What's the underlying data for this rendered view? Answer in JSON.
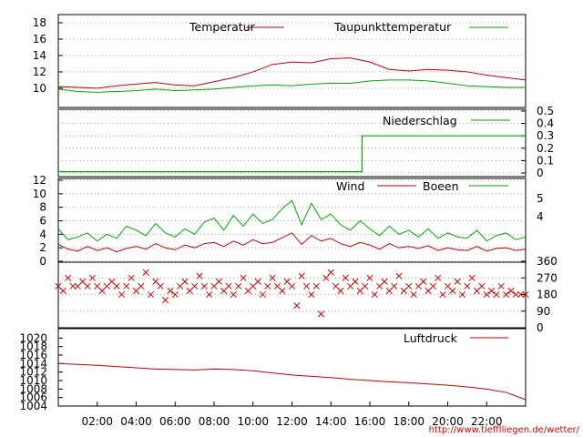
{
  "footer_url": "http://www.tiefflliegen.de/wetter/",
  "x_axis": {
    "hours": [
      "02:00",
      "04:00",
      "06:00",
      "08:00",
      "10:00",
      "12:00",
      "14:00",
      "16:00",
      "18:00",
      "20:00",
      "22:00"
    ]
  },
  "chart_data": [
    {
      "type": "line",
      "id": "temperature",
      "title": "",
      "xlabel": "",
      "ylabel": "",
      "ylim": [
        8,
        19
      ],
      "yticks": [
        "10",
        "12",
        "14",
        "16",
        "18"
      ],
      "grid": true,
      "legend_position": "top-right",
      "x_hours": [
        0,
        1,
        2,
        3,
        4,
        5,
        6,
        7,
        8,
        9,
        10,
        11,
        12,
        13,
        14,
        15,
        16,
        17,
        18,
        19,
        20,
        21,
        22,
        23,
        24
      ],
      "series": [
        {
          "name": "Temperatur",
          "color": "#cc0000",
          "values": [
            10.2,
            10.1,
            10.0,
            10.3,
            10.5,
            10.7,
            10.4,
            10.3,
            10.8,
            11.3,
            12.0,
            12.9,
            13.2,
            13.1,
            13.6,
            13.7,
            13.2,
            12.3,
            12.1,
            12.3,
            12.2,
            12.0,
            11.6,
            11.3,
            11.0
          ]
        },
        {
          "name": "Taupunkttemperatur",
          "color": "#00aa00",
          "values": [
            9.9,
            9.6,
            9.5,
            9.6,
            9.7,
            9.9,
            9.7,
            9.8,
            9.9,
            10.1,
            10.3,
            10.4,
            10.3,
            10.5,
            10.6,
            10.6,
            10.9,
            11.0,
            11.0,
            10.9,
            10.6,
            10.3,
            10.2,
            10.1,
            10.1
          ]
        }
      ]
    },
    {
      "type": "line",
      "id": "precipitation",
      "title": "",
      "xlabel": "",
      "ylabel": "",
      "ylim": [
        0,
        0.5
      ],
      "yticks_right": [
        "0",
        "0.1",
        "0.2",
        "0.3",
        "0.4",
        "0.5"
      ],
      "grid": true,
      "legend_position": "top-right",
      "series": [
        {
          "name": "Niederschlag",
          "color": "#00aa00",
          "points": [
            [
              0,
              0.01
            ],
            [
              15.6,
              0.01
            ],
            [
              15.6,
              0.3
            ],
            [
              24,
              0.3
            ]
          ]
        }
      ]
    },
    {
      "type": "line",
      "id": "wind",
      "title": "",
      "xlabel": "",
      "ylabel": "",
      "ylim": [
        0,
        12
      ],
      "yticks": [
        "0",
        "2",
        "4",
        "6",
        "8",
        "10",
        "12"
      ],
      "yticks_right": [
        "4",
        "5"
      ],
      "grid": true,
      "legend_position": "top-right",
      "x_hours": [
        0,
        0.5,
        1,
        1.5,
        2,
        2.5,
        3,
        3.5,
        4,
        4.5,
        5,
        5.5,
        6,
        6.5,
        7,
        7.5,
        8,
        8.5,
        9,
        9.5,
        10,
        10.5,
        11,
        11.5,
        12,
        12.5,
        13,
        13.5,
        14,
        14.5,
        15,
        15.5,
        16,
        16.5,
        17,
        17.5,
        18,
        18.5,
        19,
        19.5,
        20,
        20.5,
        21,
        21.5,
        22,
        22.5,
        23,
        23.5,
        24
      ],
      "series": [
        {
          "name": "Wind",
          "color": "#cc0000",
          "values": [
            2.5,
            1.8,
            1.5,
            2.2,
            1.6,
            2.0,
            1.4,
            1.9,
            2.2,
            1.8,
            2.6,
            2.0,
            1.7,
            2.4,
            2.0,
            2.6,
            2.8,
            2.2,
            3.0,
            2.4,
            3.2,
            2.6,
            2.8,
            3.5,
            4.2,
            2.5,
            3.8,
            3.0,
            3.4,
            2.6,
            2.2,
            2.8,
            2.4,
            1.8,
            2.6,
            2.0,
            2.2,
            1.9,
            2.3,
            1.6,
            2.0,
            1.7,
            1.6,
            2.2,
            1.5,
            1.9,
            2.0,
            1.6,
            1.8
          ]
        },
        {
          "name": "Boeen",
          "color": "#00aa00",
          "values": [
            4.8,
            3.2,
            3.6,
            4.2,
            3.0,
            4.0,
            3.4,
            5.2,
            4.6,
            3.8,
            5.6,
            4.2,
            3.6,
            4.8,
            4.0,
            5.8,
            6.4,
            4.6,
            6.8,
            5.2,
            7.0,
            5.6,
            6.2,
            7.8,
            9.0,
            5.4,
            8.6,
            6.2,
            7.0,
            5.4,
            4.6,
            6.0,
            4.8,
            3.8,
            5.2,
            4.0,
            4.6,
            3.6,
            4.8,
            3.4,
            4.2,
            3.6,
            3.4,
            4.6,
            3.0,
            3.8,
            4.2,
            3.2,
            3.6
          ]
        }
      ]
    },
    {
      "type": "scatter",
      "id": "wind_direction",
      "title": "",
      "xlabel": "",
      "ylabel": "",
      "ylim": [
        0,
        360
      ],
      "yticks_right": [
        "0",
        "90",
        "180",
        "270",
        "360"
      ],
      "grid": true,
      "marker": "x",
      "marker_color": "#cc0000",
      "x_hours": [
        0,
        0.25,
        0.5,
        0.75,
        1,
        1.25,
        1.5,
        1.75,
        2,
        2.25,
        2.5,
        2.75,
        3,
        3.25,
        3.5,
        3.75,
        4,
        4.25,
        4.5,
        4.75,
        5,
        5.25,
        5.5,
        5.75,
        6,
        6.25,
        6.5,
        6.75,
        7,
        7.25,
        7.5,
        7.75,
        8,
        8.25,
        8.5,
        8.75,
        9,
        9.25,
        9.5,
        9.75,
        10,
        10.25,
        10.5,
        10.75,
        11,
        11.25,
        11.5,
        11.75,
        12,
        12.25,
        12.5,
        12.75,
        13,
        13.25,
        13.5,
        13.75,
        14,
        14.25,
        14.5,
        14.75,
        15,
        15.25,
        15.5,
        15.75,
        16,
        16.25,
        16.5,
        16.75,
        17,
        17.25,
        17.5,
        17.75,
        18,
        18.25,
        18.5,
        18.75,
        19,
        19.25,
        19.5,
        19.75,
        20,
        20.25,
        20.5,
        20.75,
        21,
        21.25,
        21.5,
        21.75,
        22,
        22.25,
        22.5,
        22.75,
        23,
        23.25,
        23.5,
        23.75,
        24
      ],
      "values": [
        225,
        200,
        270,
        225,
        225,
        250,
        225,
        270,
        225,
        200,
        225,
        250,
        225,
        180,
        225,
        270,
        200,
        225,
        300,
        180,
        250,
        225,
        150,
        200,
        180,
        225,
        250,
        200,
        225,
        280,
        225,
        180,
        225,
        250,
        200,
        225,
        180,
        225,
        270,
        200,
        225,
        250,
        180,
        225,
        270,
        225,
        200,
        250,
        225,
        120,
        280,
        225,
        180,
        225,
        75,
        270,
        300,
        225,
        200,
        270,
        225,
        250,
        200,
        225,
        270,
        180,
        225,
        250,
        200,
        225,
        280,
        200,
        225,
        180,
        225,
        250,
        200,
        225,
        270,
        180,
        225,
        200,
        250,
        180,
        225,
        270,
        200,
        225,
        180,
        200,
        180,
        225,
        180,
        200,
        180,
        180,
        180
      ]
    },
    {
      "type": "line",
      "id": "pressure",
      "title": "",
      "xlabel": "",
      "ylabel": "",
      "ylim": [
        1004,
        1022
      ],
      "yticks": [
        "1004",
        "1006",
        "1008",
        "1010",
        "1012",
        "1014",
        "1016",
        "1018",
        "1020"
      ],
      "grid": false,
      "legend_position": "top-right",
      "x_hours": [
        0,
        1,
        2,
        3,
        4,
        5,
        6,
        7,
        8,
        9,
        10,
        11,
        12,
        13,
        14,
        15,
        16,
        17,
        18,
        19,
        20,
        21,
        22,
        23,
        24
      ],
      "series": [
        {
          "name": "Luftdruck",
          "color": "#cc0000",
          "values": [
            1014.0,
            1013.8,
            1013.6,
            1013.3,
            1013.0,
            1012.7,
            1012.6,
            1012.5,
            1012.7,
            1012.6,
            1012.3,
            1011.8,
            1011.3,
            1011.0,
            1010.7,
            1010.3,
            1010.0,
            1009.7,
            1009.5,
            1009.2,
            1008.9,
            1008.5,
            1008.0,
            1007.2,
            1005.5
          ]
        }
      ]
    }
  ]
}
